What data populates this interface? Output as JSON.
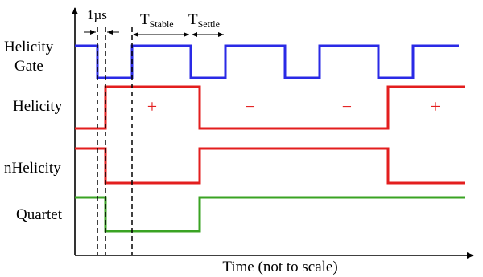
{
  "labels": {
    "helicity_gate_line1": "Helicity",
    "helicity_gate_line2": "Gate",
    "helicity": "Helicity",
    "nhelicity": "nHelicity",
    "quartet": "Quartet",
    "x_axis": "Time (not to scale)",
    "interval_1us": "1µs",
    "t_stable_base": "T",
    "t_stable_sub": "Stable",
    "t_settle_base": "T",
    "t_settle_sub": "Settle"
  },
  "helicity_signs": [
    "+",
    "−",
    "−",
    "+"
  ],
  "colors": {
    "gate": "#2a2ae6",
    "helicity": "#e31e1e",
    "quartet": "#3aa323",
    "axis": "#000000"
  }
}
